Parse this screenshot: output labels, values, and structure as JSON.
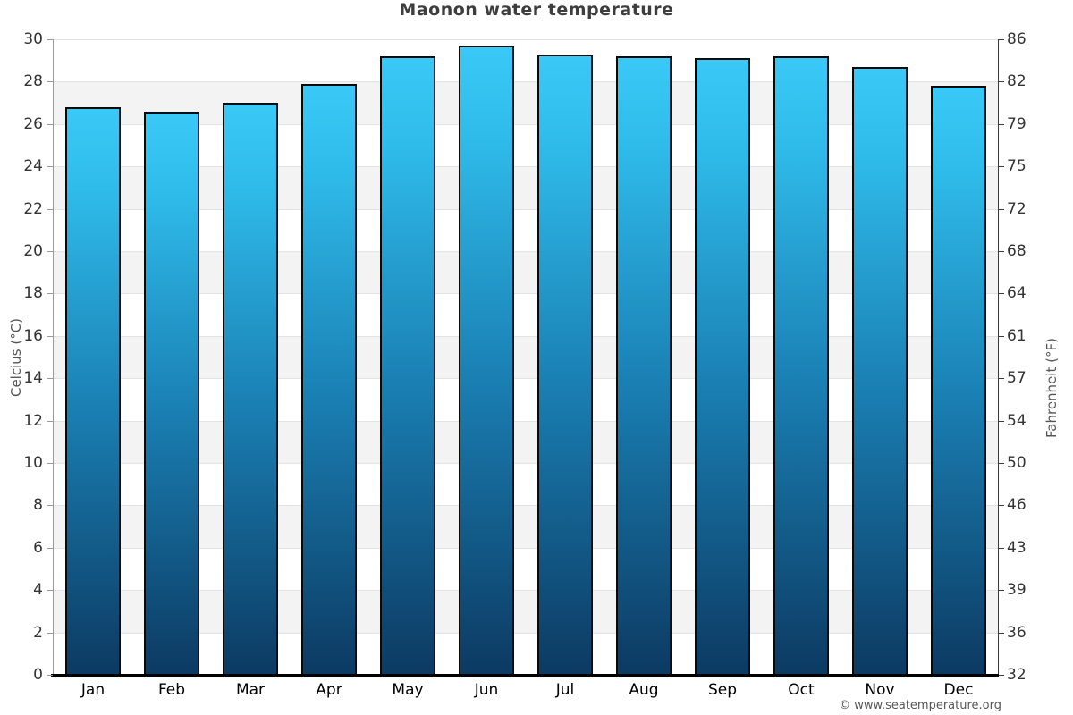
{
  "title": "Maonon water temperature",
  "footer_copyright": "© www.seatemperature.org",
  "chart_data": {
    "type": "bar",
    "title": "Maonon water temperature",
    "categories": [
      "Jan",
      "Feb",
      "Mar",
      "Apr",
      "May",
      "Jun",
      "Jul",
      "Aug",
      "Sep",
      "Oct",
      "Nov",
      "Dec"
    ],
    "values": [
      26.8,
      26.6,
      27.0,
      27.9,
      29.2,
      29.7,
      29.3,
      29.2,
      29.1,
      29.2,
      28.7,
      27.8
    ],
    "unit": "°C",
    "ylabel_left": "Celcius (°C)",
    "ylabel_right": "Fahrenheit (°F)",
    "ylim_left": [
      0,
      30
    ],
    "yticks_left": [
      0,
      2,
      4,
      6,
      8,
      10,
      12,
      14,
      16,
      18,
      20,
      22,
      24,
      26,
      28,
      30
    ],
    "yticks_right": [
      32,
      36,
      39,
      43,
      46,
      50,
      54,
      57,
      61,
      64,
      68,
      72,
      75,
      79,
      82,
      86
    ],
    "legend": "none",
    "grid": "alternating horizontal bands every 2°C",
    "colors": {
      "bar_gradient_top": "#3ac9f6",
      "bar_gradient_upper": "#2fbcea",
      "bar_gradient_mid": "#1a7fb3",
      "bar_gradient_bottom": "#0c3a62",
      "bar_border": "#0a0a0a",
      "band_gray": "#f3f3f3",
      "band_white": "#ffffff",
      "gridline": "#e3e3e3",
      "axis_left": "#9a9a9a",
      "axis_right": "#3a3a3a",
      "axis_bottom": "#000000",
      "title_color": "#3d3d3d",
      "tick_label_color": "#333333",
      "axis_title_color": "#555555",
      "footer_color": "#565656"
    }
  }
}
